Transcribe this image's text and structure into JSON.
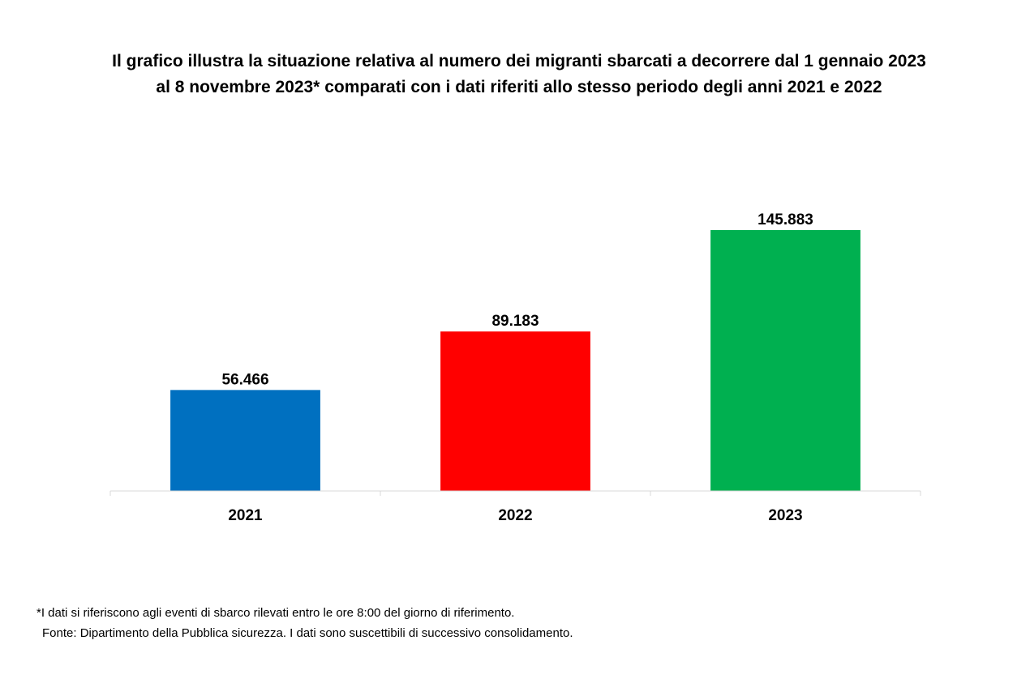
{
  "chart_data": {
    "type": "bar",
    "title": "Il grafico illustra la situazione relativa al numero dei migranti sbarcati a decorrere dal 1 gennaio 2023 al 8 novembre 2023* comparati con i dati riferiti allo stesso periodo degli anni 2021 e 2022",
    "categories": [
      "2021",
      "2022",
      "2023"
    ],
    "values": [
      56466,
      89183,
      145883
    ],
    "data_labels": [
      "56.466",
      "89.183",
      "145.883"
    ],
    "colors": [
      "#0070C0",
      "#FF0000",
      "#00B050"
    ],
    "xlabel": "",
    "ylabel": "",
    "ylim": [
      0,
      145883
    ],
    "grid": false,
    "legend": "none"
  },
  "footnotes": {
    "note": "*I dati si riferiscono agli eventi di sbarco rilevati entro le ore 8:00 del giorno di riferimento.",
    "source": "Fonte: Dipartimento della Pubblica sicurezza. I dati sono suscettibili di successivo consolidamento."
  }
}
